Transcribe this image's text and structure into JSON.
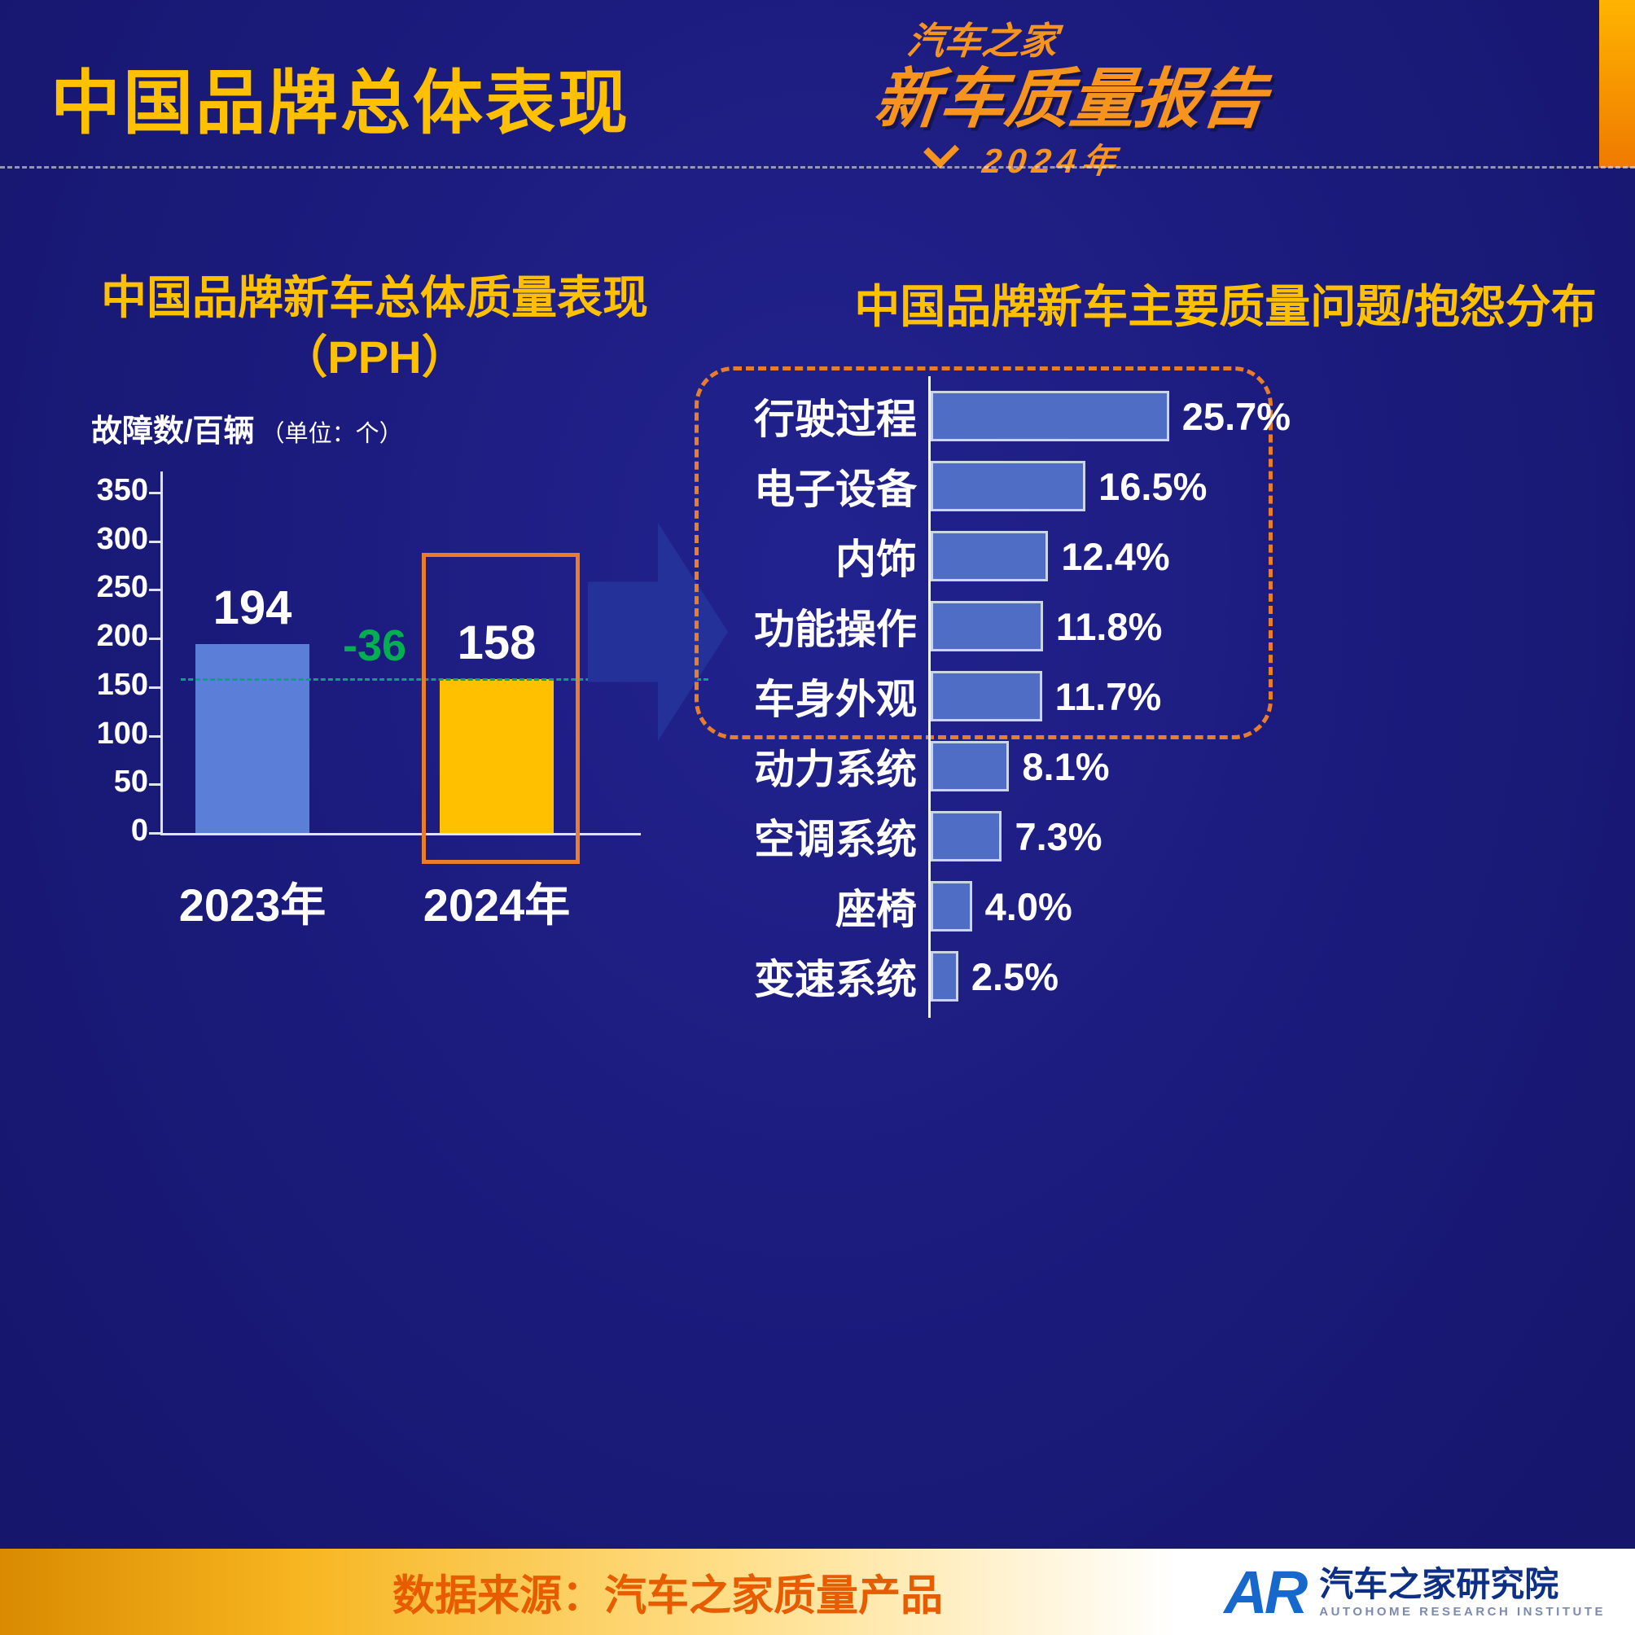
{
  "header": {
    "title": "中国品牌总体表现",
    "logo": {
      "brand": "汽车之家",
      "report": "新车质量报告",
      "year": "2024年"
    }
  },
  "footer": {
    "source": "数据来源：汽车之家质量产品",
    "logo_abbr": "AR",
    "org_name": "汽车之家研究院",
    "org_name_en": "AUTOHOME RESEARCH INSTITUTE"
  },
  "colors": {
    "background": "#1a1a7a",
    "accent_yellow": "#ffc000",
    "bar_blue": "#5b7fd8",
    "bar_gold": "#ffc000",
    "right_bar_blue": "#4f6dc4",
    "highlight_orange": "#e87d2a",
    "annotation_green": "#00b050",
    "footer_text_orange": "#e85c00"
  },
  "chart_data": [
    {
      "type": "bar",
      "title_lines": [
        "中国品牌新车总体质量表现",
        "（PPH）"
      ],
      "ylabel": "故障数/百辆",
      "ylabel_unit": "（单位：个）",
      "categories": [
        "2023年",
        "2024年"
      ],
      "values": [
        194,
        158
      ],
      "value_labels": [
        "194",
        "158"
      ],
      "bar_colors": [
        "#5b7fd8",
        "#ffc000"
      ],
      "ylim": [
        0,
        350
      ],
      "yticks": [
        0,
        50,
        100,
        150,
        200,
        250,
        300,
        350
      ],
      "annotation": "-36",
      "annotation_color": "#00b050",
      "reference_line_value": 158,
      "highlight_index": 1,
      "grid": false,
      "legend": "none"
    },
    {
      "type": "bar",
      "orientation": "horizontal",
      "title": "中国品牌新车主要质量问题/抱怨分布",
      "categories": [
        "行驶过程",
        "电子设备",
        "内饰",
        "功能操作",
        "车身外观",
        "动力系统",
        "空调系统",
        "座椅",
        "变速系统"
      ],
      "values": [
        25.7,
        16.5,
        12.4,
        11.8,
        11.7,
        8.1,
        7.3,
        4.0,
        2.5
      ],
      "value_labels": [
        "25.7%",
        "16.5%",
        "12.4%",
        "11.8%",
        "11.7%",
        "8.1%",
        "7.3%",
        "4.0%",
        "2.5%"
      ],
      "bar_color": "#4f6dc4",
      "highlight_group_count": 5,
      "xlim": [
        0,
        26
      ],
      "grid": false,
      "legend": "none"
    }
  ]
}
